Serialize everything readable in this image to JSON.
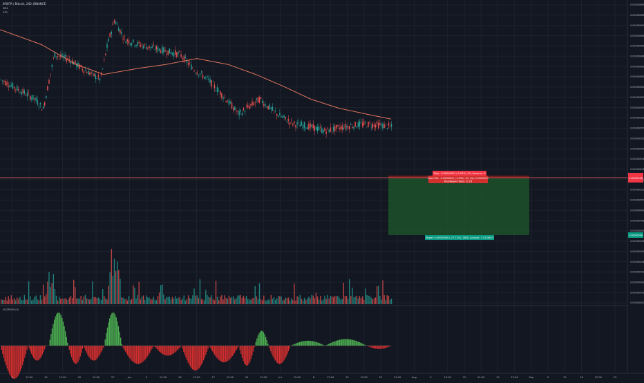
{
  "header": {
    "symbol_line": "IMIOTA / Bitcoin, 240, BINANCE",
    "indicator_1": "SMA",
    "indicator_2": "ATR"
  },
  "oscillator": {
    "label": "SQZMOM_LB"
  },
  "position": {
    "stop_label": "Stop: -0.00000001 (-5.95%) -59, Amount: -0",
    "open_pnl_label": "Open P&L: -0.00000001 (-5.95%) -59, Qty: 0.00000001",
    "ratio_label": "Risk/Reward Ratio: 21.16",
    "target_label": "Target: 0.00000049 (-27.71%) -2800, Amount: 3.4278623",
    "colors": {
      "stop": "#f23645",
      "target": "#089981",
      "zone": "#1e5a2b"
    }
  },
  "colors": {
    "background": "#131722",
    "grid": "#1e222d",
    "bull": "#26a69a",
    "bear": "#ef5350",
    "sma": "#e0755c",
    "hline": "#c0504d",
    "mom_pos": "#4caf50",
    "mom_neg": "#d32f2f"
  },
  "chart_data": {
    "type": "candlestick",
    "x_tick_labels": [
      "8",
      "12:00",
      "15",
      "12:00",
      "20",
      "12:00",
      "27",
      "Jun",
      "9",
      "12:00",
      "16",
      "12:00",
      "17",
      "12:00",
      "24",
      "12:00",
      "Jul",
      "12:00",
      "8",
      "12:00",
      "15",
      "12:00",
      "22",
      "12:00",
      "Aug",
      "5",
      "12:00",
      "12",
      "12:00",
      "19",
      "12:00",
      "Sep",
      "9",
      "12",
      "16",
      "12:00",
      "23"
    ],
    "y_tick_labels": [
      "0.00000069",
      "0.00000068",
      "0.00000067",
      "0.00000066",
      "0.00000065",
      "0.00000064",
      "0.00000063",
      "0.00000062",
      "0.00000061",
      "0.00000060",
      "0.00000059",
      "0.00000058",
      "0.00000057",
      "0.00000056",
      "0.00000055",
      "0.00000054",
      "0.00000053",
      "0.00000052",
      "0.00000051",
      "0.00000050",
      "0.00000049",
      "0.00000048",
      "0.00000047",
      "0.00000046",
      "0.00000045",
      "0.00000044",
      "0.00000043",
      "0.00000042",
      "0.00000041",
      "0.00000040"
    ],
    "y_range": [
      4e-07,
      7e-07
    ],
    "current_price_label": "0.00000058",
    "current_price_label_2": "0.00000049",
    "trend": [
      [
        0,
        6.25e-07
      ],
      [
        25,
        6.15e-07
      ],
      [
        50,
        6.05e-07
      ],
      [
        62,
        5.95e-07
      ],
      [
        78,
        6.5e-07
      ],
      [
        100,
        6.45e-07
      ],
      [
        120,
        6.35e-07
      ],
      [
        145,
        6.25e-07
      ],
      [
        155,
        6.6e-07
      ],
      [
        165,
        6.85e-07
      ],
      [
        180,
        6.65e-07
      ],
      [
        200,
        6.6e-07
      ],
      [
        230,
        6.55e-07
      ],
      [
        260,
        6.5e-07
      ],
      [
        280,
        6.35e-07
      ],
      [
        300,
        6.25e-07
      ],
      [
        320,
        6.1e-07
      ],
      [
        345,
        5.9e-07
      ],
      [
        375,
        6.05e-07
      ],
      [
        400,
        5.9e-07
      ],
      [
        425,
        5.8e-07
      ],
      [
        445,
        5.78e-07
      ],
      [
        470,
        5.73e-07
      ],
      [
        495,
        5.77e-07
      ],
      [
        525,
        5.8e-07
      ],
      [
        548,
        5.79e-07
      ],
      [
        566,
        5.77e-07
      ]
    ],
    "sma_points": [
      [
        0,
        6.75e-07
      ],
      [
        60,
        6.6e-07
      ],
      [
        110,
        6.4e-07
      ],
      [
        150,
        6.3e-07
      ],
      [
        200,
        6.36e-07
      ],
      [
        240,
        6.4e-07
      ],
      [
        285,
        6.46e-07
      ],
      [
        330,
        6.4e-07
      ],
      [
        370,
        6.3e-07
      ],
      [
        410,
        6.18e-07
      ],
      [
        450,
        6.05e-07
      ],
      [
        490,
        5.96e-07
      ],
      [
        530,
        5.9e-07
      ],
      [
        566,
        5.85e-07
      ]
    ],
    "volume_peaks": [
      [
        70,
        0.5
      ],
      [
        76,
        0.6
      ],
      [
        160,
        0.85
      ],
      [
        165,
        1.0
      ],
      [
        170,
        0.75
      ],
      [
        233,
        0.45
      ]
    ],
    "momentum_humps": [
      [
        0,
        40,
        -1
      ],
      [
        40,
        66,
        -0.45
      ],
      [
        70,
        98,
        1.0
      ],
      [
        98,
        120,
        -0.55
      ],
      [
        120,
        150,
        -0.45
      ],
      [
        150,
        176,
        1.0
      ],
      [
        176,
        222,
        -0.55
      ],
      [
        222,
        262,
        -0.3
      ],
      [
        262,
        302,
        -0.75
      ],
      [
        302,
        345,
        -0.5
      ],
      [
        345,
        368,
        -0.6
      ],
      [
        368,
        388,
        0.45
      ],
      [
        388,
        420,
        -0.55
      ],
      [
        420,
        470,
        0.15
      ],
      [
        470,
        530,
        0.2
      ],
      [
        530,
        566,
        -0.1
      ]
    ]
  }
}
